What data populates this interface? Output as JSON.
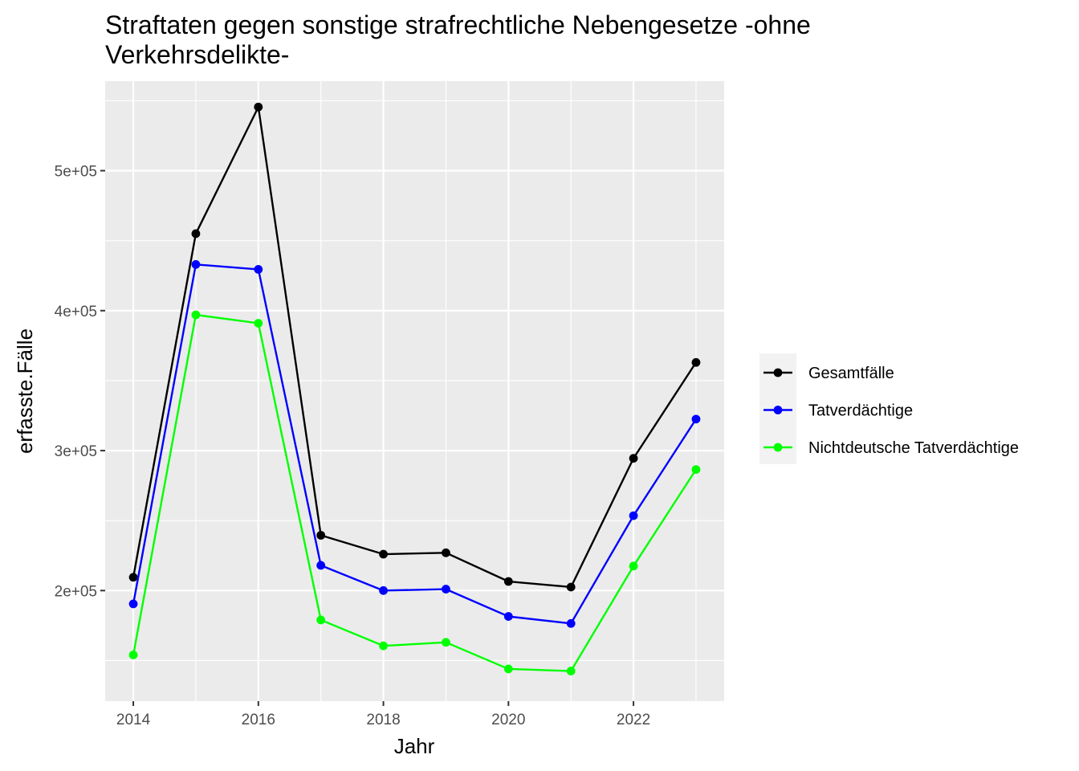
{
  "chart_data": {
    "type": "line",
    "title": "Straftaten gegen sonstige strafrechtliche Nebengesetze -ohne Verkehrsdelikte-",
    "title_lines": [
      "Straftaten gegen sonstige strafrechtliche Nebengesetze -ohne",
      "Verkehrsdelikte-"
    ],
    "xlabel": "Jahr",
    "ylabel": "erfasste.Fälle",
    "x": [
      2014,
      2015,
      2016,
      2017,
      2018,
      2019,
      2020,
      2021,
      2022,
      2023
    ],
    "x_ticks": [
      2014,
      2016,
      2018,
      2020,
      2022
    ],
    "x_tick_labels": [
      "2014",
      "2016",
      "2018",
      "2020",
      "2022"
    ],
    "xlim": [
      2013.55,
      2023.45
    ],
    "y_ticks": [
      200000,
      300000,
      400000,
      500000
    ],
    "y_tick_labels": [
      "2e+05",
      "3e+05",
      "4e+05",
      "5e+05"
    ],
    "ylim": [
      121000,
      564000
    ],
    "grid": true,
    "legend_position": "right",
    "series": [
      {
        "name": "Gesamtfälle",
        "color": "#000000",
        "values": [
          209500,
          455000,
          545500,
          239500,
          226000,
          227000,
          206500,
          202500,
          294500,
          363000
        ]
      },
      {
        "name": "Tatverdächtige",
        "color": "#0000ff",
        "values": [
          190500,
          433000,
          429500,
          218000,
          200000,
          201000,
          181500,
          176500,
          253500,
          322500
        ]
      },
      {
        "name": "Nichtdeutsche Tatverdächtige",
        "color": "#00ff00",
        "values": [
          154000,
          397000,
          391000,
          179000,
          160500,
          163000,
          144000,
          142500,
          217500,
          286500
        ]
      }
    ]
  }
}
